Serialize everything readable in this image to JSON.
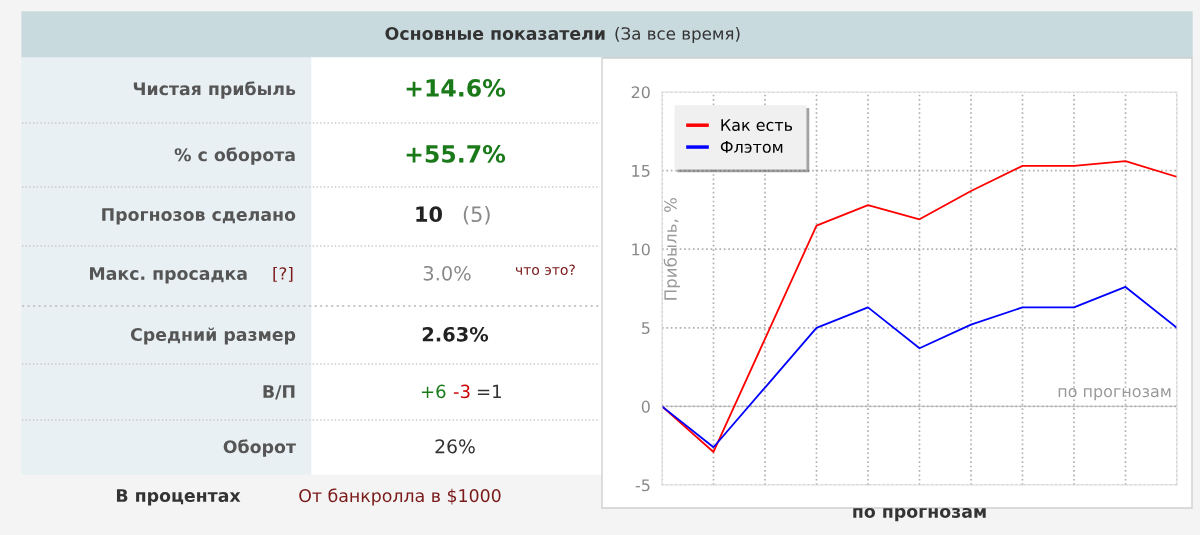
{
  "chart_data": [
    {
      "type": "other",
      "title": "Основные показатели",
      "subtitle": "(За все время)",
      "annotations": [
        "Чистая прибыль",
        "+14.6%",
        "% с оборота",
        "+55.7%",
        "Прогнозов сделано",
        "10",
        "(5)",
        "Макс. просадка",
        "[?]",
        "3.0%",
        "что это?",
        "Средний размер",
        "2.63%",
        "В/П",
        "+6",
        "-3",
        "=1",
        "Оборот",
        "26%",
        "В процентах",
        "От банкролла в $1000"
      ]
    },
    {
      "type": "line",
      "categories": [
        null,
        null,
        null,
        null,
        null,
        null,
        null,
        null,
        null,
        null,
        null
      ],
      "series": [
        {
          "name": "Как есть",
          "color": "#ff0000",
          "values": [
            0,
            -2.9,
            4.3,
            11.5,
            12.8,
            11.9,
            13.7,
            15.3,
            15.3,
            15.6,
            14.6
          ]
        },
        {
          "name": "Флэтом",
          "color": "#0000ff",
          "values": [
            0,
            -2.6,
            1.2,
            5.0,
            6.3,
            3.7,
            5.2,
            6.3,
            6.3,
            7.6,
            5.0
          ]
        }
      ],
      "ylim": [
        -5,
        20
      ],
      "yticks": [
        -5,
        0,
        5,
        10,
        15,
        20
      ],
      "ylabel": "Прибыль, %",
      "xlabel": "по прогнозам",
      "annotations": [
        "по прогнозам"
      ],
      "grid": true,
      "legend": "top left",
      "tick_labels": "y",
      "line_style": "solid",
      "marker": "none"
    }
  ]
}
